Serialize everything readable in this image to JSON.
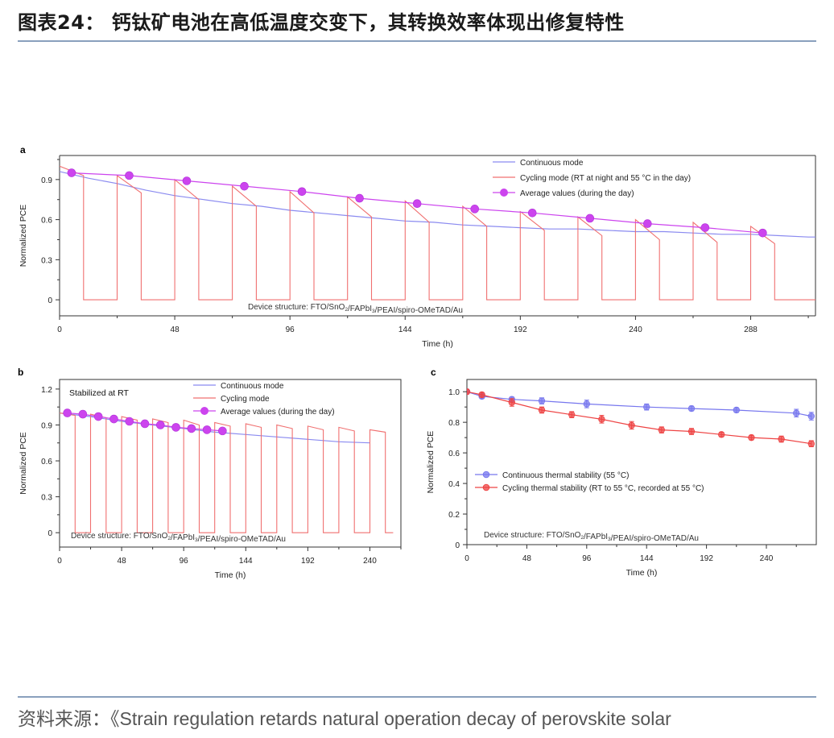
{
  "header": {
    "title": "图表24： 钙钛矿电池在高低温度交变下，其转换效率体现出修复特性"
  },
  "footer": {
    "source": "资料来源：《Strain regulation retards natural operation decay of perovskite solar"
  },
  "colors": {
    "continuous": "#8b8bf0",
    "cycling": "#f07070",
    "average": "#cc44ee",
    "continuous_thermal": "#7777ee",
    "cycling_thermal": "#ee4444",
    "rule": "#8aa0bd"
  },
  "chart_data": [
    {
      "panel": "a",
      "type": "line",
      "xlabel": "Time (h)",
      "ylabel": "Normalized PCE",
      "xticks": [
        0,
        48,
        96,
        144,
        192,
        240,
        288
      ],
      "yticks": [
        0,
        0.3,
        0.6,
        0.9
      ],
      "xlim": [
        0,
        315
      ],
      "ylim": [
        -0.12,
        1.08
      ],
      "annotation": "Device structure: FTO/SnO2/FAPbI3/PEAI/spiro-OMeTAD/Au",
      "legend_position": "top-right",
      "series": [
        {
          "name": "Continuous mode",
          "style": "line",
          "x": [
            0,
            12,
            24,
            36,
            48,
            60,
            72,
            84,
            96,
            108,
            120,
            132,
            144,
            156,
            168,
            180,
            192,
            204,
            216,
            228,
            240,
            252,
            264,
            276,
            288,
            300,
            312,
            315
          ],
          "y": [
            0.96,
            0.91,
            0.87,
            0.82,
            0.78,
            0.75,
            0.72,
            0.7,
            0.67,
            0.65,
            0.63,
            0.61,
            0.59,
            0.58,
            0.56,
            0.55,
            0.54,
            0.53,
            0.53,
            0.52,
            0.51,
            0.51,
            0.5,
            0.49,
            0.49,
            0.48,
            0.47,
            0.47
          ]
        },
        {
          "name": "Cycling mode (RT at night and 55 °C in the day)",
          "style": "cycling",
          "cycles": [
            {
              "start": 0,
              "on_end": 10,
              "v0": 1.0,
              "v1": 0.93
            },
            {
              "start": 24,
              "on_end": 34,
              "v0": 0.93,
              "v1": 0.8
            },
            {
              "start": 48,
              "on_end": 58,
              "v0": 0.9,
              "v1": 0.75
            },
            {
              "start": 72,
              "on_end": 82,
              "v0": 0.85,
              "v1": 0.7
            },
            {
              "start": 96,
              "on_end": 106,
              "v0": 0.81,
              "v1": 0.65
            },
            {
              "start": 120,
              "on_end": 130,
              "v0": 0.77,
              "v1": 0.62
            },
            {
              "start": 144,
              "on_end": 154,
              "v0": 0.74,
              "v1": 0.58
            },
            {
              "start": 168,
              "on_end": 178,
              "v0": 0.7,
              "v1": 0.55
            },
            {
              "start": 192,
              "on_end": 202,
              "v0": 0.66,
              "v1": 0.52
            },
            {
              "start": 216,
              "on_end": 226,
              "v0": 0.62,
              "v1": 0.48
            },
            {
              "start": 240,
              "on_end": 250,
              "v0": 0.6,
              "v1": 0.45
            },
            {
              "start": 264,
              "on_end": 274,
              "v0": 0.58,
              "v1": 0.43
            },
            {
              "start": 288,
              "on_end": 298,
              "v0": 0.55,
              "v1": 0.42
            }
          ],
          "end_x": 315
        },
        {
          "name": "Average values (during the day)",
          "style": "markers-line",
          "x": [
            5,
            29,
            53,
            77,
            101,
            125,
            149,
            173,
            197,
            221,
            245,
            269,
            293
          ],
          "y": [
            0.95,
            0.93,
            0.89,
            0.85,
            0.81,
            0.76,
            0.72,
            0.68,
            0.65,
            0.61,
            0.57,
            0.54,
            0.5
          ]
        }
      ]
    },
    {
      "panel": "b",
      "type": "line",
      "xlabel": "Time (h)",
      "ylabel": "Normalized PCE",
      "xticks": [
        0,
        48,
        96,
        144,
        192,
        240
      ],
      "yticks": [
        0,
        0.3,
        0.6,
        0.9,
        1.2
      ],
      "xlim": [
        0,
        264
      ],
      "ylim": [
        -0.12,
        1.28
      ],
      "inner_title": "Stabilized at RT",
      "annotation": "Device structure: FTO/SnO2/FAPbI3/PEAI/spiro-OMeTAD/Au",
      "legend_position": "top-center",
      "series": [
        {
          "name": "Continuous mode",
          "style": "line",
          "x": [
            0,
            24,
            48,
            72,
            96,
            120,
            144,
            168,
            192,
            216,
            240
          ],
          "y": [
            1.0,
            0.97,
            0.93,
            0.9,
            0.87,
            0.84,
            0.82,
            0.8,
            0.78,
            0.76,
            0.75
          ]
        },
        {
          "name": "Cycling mode",
          "style": "cycling",
          "cycles": [
            {
              "start": 0,
              "on_end": 12,
              "v0": 1.0,
              "v1": 0.98
            },
            {
              "start": 24,
              "on_end": 36,
              "v0": 0.99,
              "v1": 0.96
            },
            {
              "start": 48,
              "on_end": 60,
              "v0": 0.97,
              "v1": 0.94
            },
            {
              "start": 72,
              "on_end": 84,
              "v0": 0.95,
              "v1": 0.92
            },
            {
              "start": 96,
              "on_end": 108,
              "v0": 0.94,
              "v1": 0.9
            },
            {
              "start": 120,
              "on_end": 132,
              "v0": 0.92,
              "v1": 0.89
            },
            {
              "start": 144,
              "on_end": 156,
              "v0": 0.91,
              "v1": 0.88
            },
            {
              "start": 168,
              "on_end": 180,
              "v0": 0.9,
              "v1": 0.87
            },
            {
              "start": 192,
              "on_end": 204,
              "v0": 0.89,
              "v1": 0.86
            },
            {
              "start": 216,
              "on_end": 228,
              "v0": 0.88,
              "v1": 0.85
            },
            {
              "start": 240,
              "on_end": 252,
              "v0": 0.86,
              "v1": 0.84
            }
          ],
          "end_x": 258
        },
        {
          "name": "Average values (during the day)",
          "style": "markers-line",
          "x": [
            6,
            18,
            30,
            42,
            54,
            66,
            78,
            90,
            102,
            114,
            126
          ],
          "y": [
            1.0,
            0.99,
            0.97,
            0.95,
            0.93,
            0.91,
            0.9,
            0.88,
            0.87,
            0.86,
            0.85
          ]
        }
      ]
    },
    {
      "panel": "c",
      "type": "scatter",
      "xlabel": "Time (h)",
      "ylabel": "Normalized PCE",
      "xticks": [
        0,
        48,
        96,
        144,
        192,
        240
      ],
      "yticks": [
        0,
        0.2,
        0.4,
        0.6,
        0.8,
        1.0
      ],
      "xlim": [
        0,
        280
      ],
      "ylim": [
        0,
        1.08
      ],
      "annotation": "Device structure: FTO/SnO2/FAPbI3/PEAI/spiro-OMeTAD/Au",
      "legend_position": "bottom-left",
      "series": [
        {
          "name": "Continuous thermal stability (55 °C)",
          "style": "errorbar",
          "x": [
            0,
            12,
            36,
            60,
            96,
            144,
            180,
            216,
            264,
            276
          ],
          "y": [
            1.0,
            0.97,
            0.95,
            0.94,
            0.92,
            0.9,
            0.89,
            0.88,
            0.86,
            0.84
          ],
          "err": [
            0.015,
            0.015,
            0.015,
            0.02,
            0.025,
            0.02,
            0.015,
            0.015,
            0.025,
            0.025
          ]
        },
        {
          "name": "Cycling thermal stability (RT to 55 °C, recorded at 55 °C)",
          "style": "errorbar",
          "x": [
            0,
            12,
            36,
            60,
            84,
            108,
            132,
            156,
            180,
            204,
            228,
            252,
            276
          ],
          "y": [
            1.0,
            0.98,
            0.93,
            0.88,
            0.85,
            0.82,
            0.78,
            0.75,
            0.74,
            0.72,
            0.7,
            0.69,
            0.66
          ],
          "err": [
            0.015,
            0.015,
            0.025,
            0.02,
            0.02,
            0.025,
            0.025,
            0.02,
            0.02,
            0.015,
            0.015,
            0.02,
            0.02
          ]
        }
      ]
    }
  ]
}
